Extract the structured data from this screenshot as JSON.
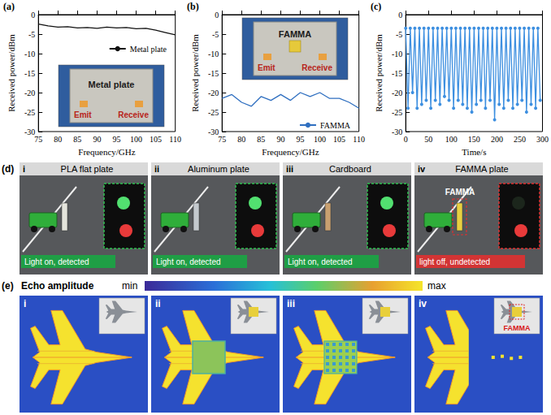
{
  "chart_data": [
    {
      "panel": "(a)",
      "type": "line",
      "x_label": "Frequency/GHz",
      "y_label": "Received power/dBm",
      "x": [
        75,
        77.5,
        80,
        82.5,
        85,
        87.5,
        90,
        92.5,
        95,
        97.5,
        100,
        102.5,
        105,
        107.5,
        110
      ],
      "series": [
        {
          "name": "Metal plate",
          "color": "#111111",
          "values": [
            -2.4,
            -2.9,
            -3.2,
            -3.1,
            -3.4,
            -3.3,
            -3.5,
            -3.2,
            -3.4,
            -3.3,
            -3.6,
            -3.5,
            -4.0,
            -4.6,
            -5.2
          ]
        }
      ],
      "xlim": [
        75,
        110
      ],
      "xticks": [
        75,
        80,
        85,
        90,
        95,
        100,
        105,
        110
      ],
      "ylim": [
        -30,
        0
      ],
      "yticks": [
        -30,
        -25,
        -20,
        -15,
        -10,
        -5,
        0
      ],
      "legend": "upper right",
      "inset": {
        "title": "Metal plate",
        "emit": "Emit",
        "receive": "Receive"
      }
    },
    {
      "panel": "(b)",
      "type": "line",
      "x_label": "Frequency/GHz",
      "y_label": "Received power/dBm",
      "x": [
        75,
        77.5,
        80,
        82.5,
        85,
        87.5,
        90,
        92.5,
        95,
        97.5,
        100,
        102.5,
        105,
        107.5,
        110
      ],
      "series": [
        {
          "name": "FAMMA",
          "color": "#2f6fc0",
          "values": [
            -21.5,
            -20.5,
            -22.5,
            -23.5,
            -21.0,
            -22.0,
            -20.5,
            -22.0,
            -20.0,
            -21.0,
            -20.0,
            -21.5,
            -21.5,
            -22.5,
            -24.0
          ]
        }
      ],
      "xlim": [
        75,
        110
      ],
      "xticks": [
        75,
        80,
        85,
        90,
        95,
        100,
        105,
        110
      ],
      "ylim": [
        -30,
        0
      ],
      "yticks": [
        -30,
        -25,
        -20,
        -15,
        -10,
        -5,
        0
      ],
      "legend": "lower right",
      "inset": {
        "title": "FAMMA",
        "emit": "Emit",
        "receive": "Receive"
      }
    },
    {
      "panel": "(c)",
      "type": "line",
      "x_label": "Time/s",
      "y_label": "Received power/dBm",
      "marker": "circle",
      "x": [
        0,
        5,
        10,
        15,
        20,
        25,
        30,
        35,
        40,
        45,
        50,
        55,
        60,
        65,
        70,
        75,
        80,
        85,
        90,
        95,
        100,
        105,
        110,
        115,
        120,
        125,
        130,
        135,
        140,
        145,
        150,
        155,
        160,
        165,
        170,
        175,
        180,
        185,
        190,
        195,
        200,
        205,
        210,
        215,
        220,
        225,
        230,
        235,
        240,
        245,
        250,
        255,
        260,
        265,
        270,
        275,
        280,
        285,
        290,
        295
      ],
      "series": [
        {
          "color": "#3d8fe0",
          "values": [
            -3.5,
            -24,
            -3.5,
            -20,
            -3.5,
            -24,
            -3.5,
            -23,
            -3.5,
            -22,
            -3.5,
            -24,
            -3.5,
            -22,
            -3.5,
            -23,
            -3.5,
            -21,
            -3.5,
            -22,
            -3.5,
            -24,
            -3.5,
            -22,
            -3.5,
            -23,
            -3.5,
            -24,
            -3.5,
            -25,
            -3.5,
            -23,
            -3.5,
            -22,
            -3.5,
            -24,
            -3.5,
            -22,
            -3.5,
            -27,
            -3.5,
            -23,
            -3.5,
            -24,
            -3.5,
            -22,
            -3.5,
            -24,
            -3.5,
            -23,
            -3.5,
            -22,
            -3.5,
            -25,
            -3.5,
            -23,
            -3.5,
            -24,
            -3.5,
            -22
          ]
        }
      ],
      "xlim": [
        0,
        300
      ],
      "xticks": [
        0,
        50,
        100,
        150,
        200,
        250,
        300
      ],
      "ylim": [
        -30,
        0
      ],
      "yticks": [
        -30,
        -25,
        -20,
        -15,
        -10,
        -5,
        0
      ]
    }
  ],
  "panel_d": {
    "panel": "(d)",
    "items": [
      {
        "index": "i",
        "title": "PLA flat plate",
        "status": "Light on, detected",
        "detected": true
      },
      {
        "index": "ii",
        "title": "Aluminum plate",
        "status": "Light on, detected",
        "detected": true
      },
      {
        "index": "iii",
        "title": "Cardboard",
        "status": "Light on, detected",
        "detected": true
      },
      {
        "index": "iv",
        "title": "FAMMA plate",
        "status": "light off, undetected",
        "detected": false,
        "target": "FAMMA"
      }
    ]
  },
  "panel_e": {
    "panel": "(e)",
    "title": "Echo amplitude",
    "colorbar": {
      "min_label": "min",
      "max_label": "max"
    },
    "items": [
      {
        "index": "i"
      },
      {
        "index": "ii"
      },
      {
        "index": "iii"
      },
      {
        "index": "iv",
        "target": "FAMMA"
      }
    ]
  }
}
